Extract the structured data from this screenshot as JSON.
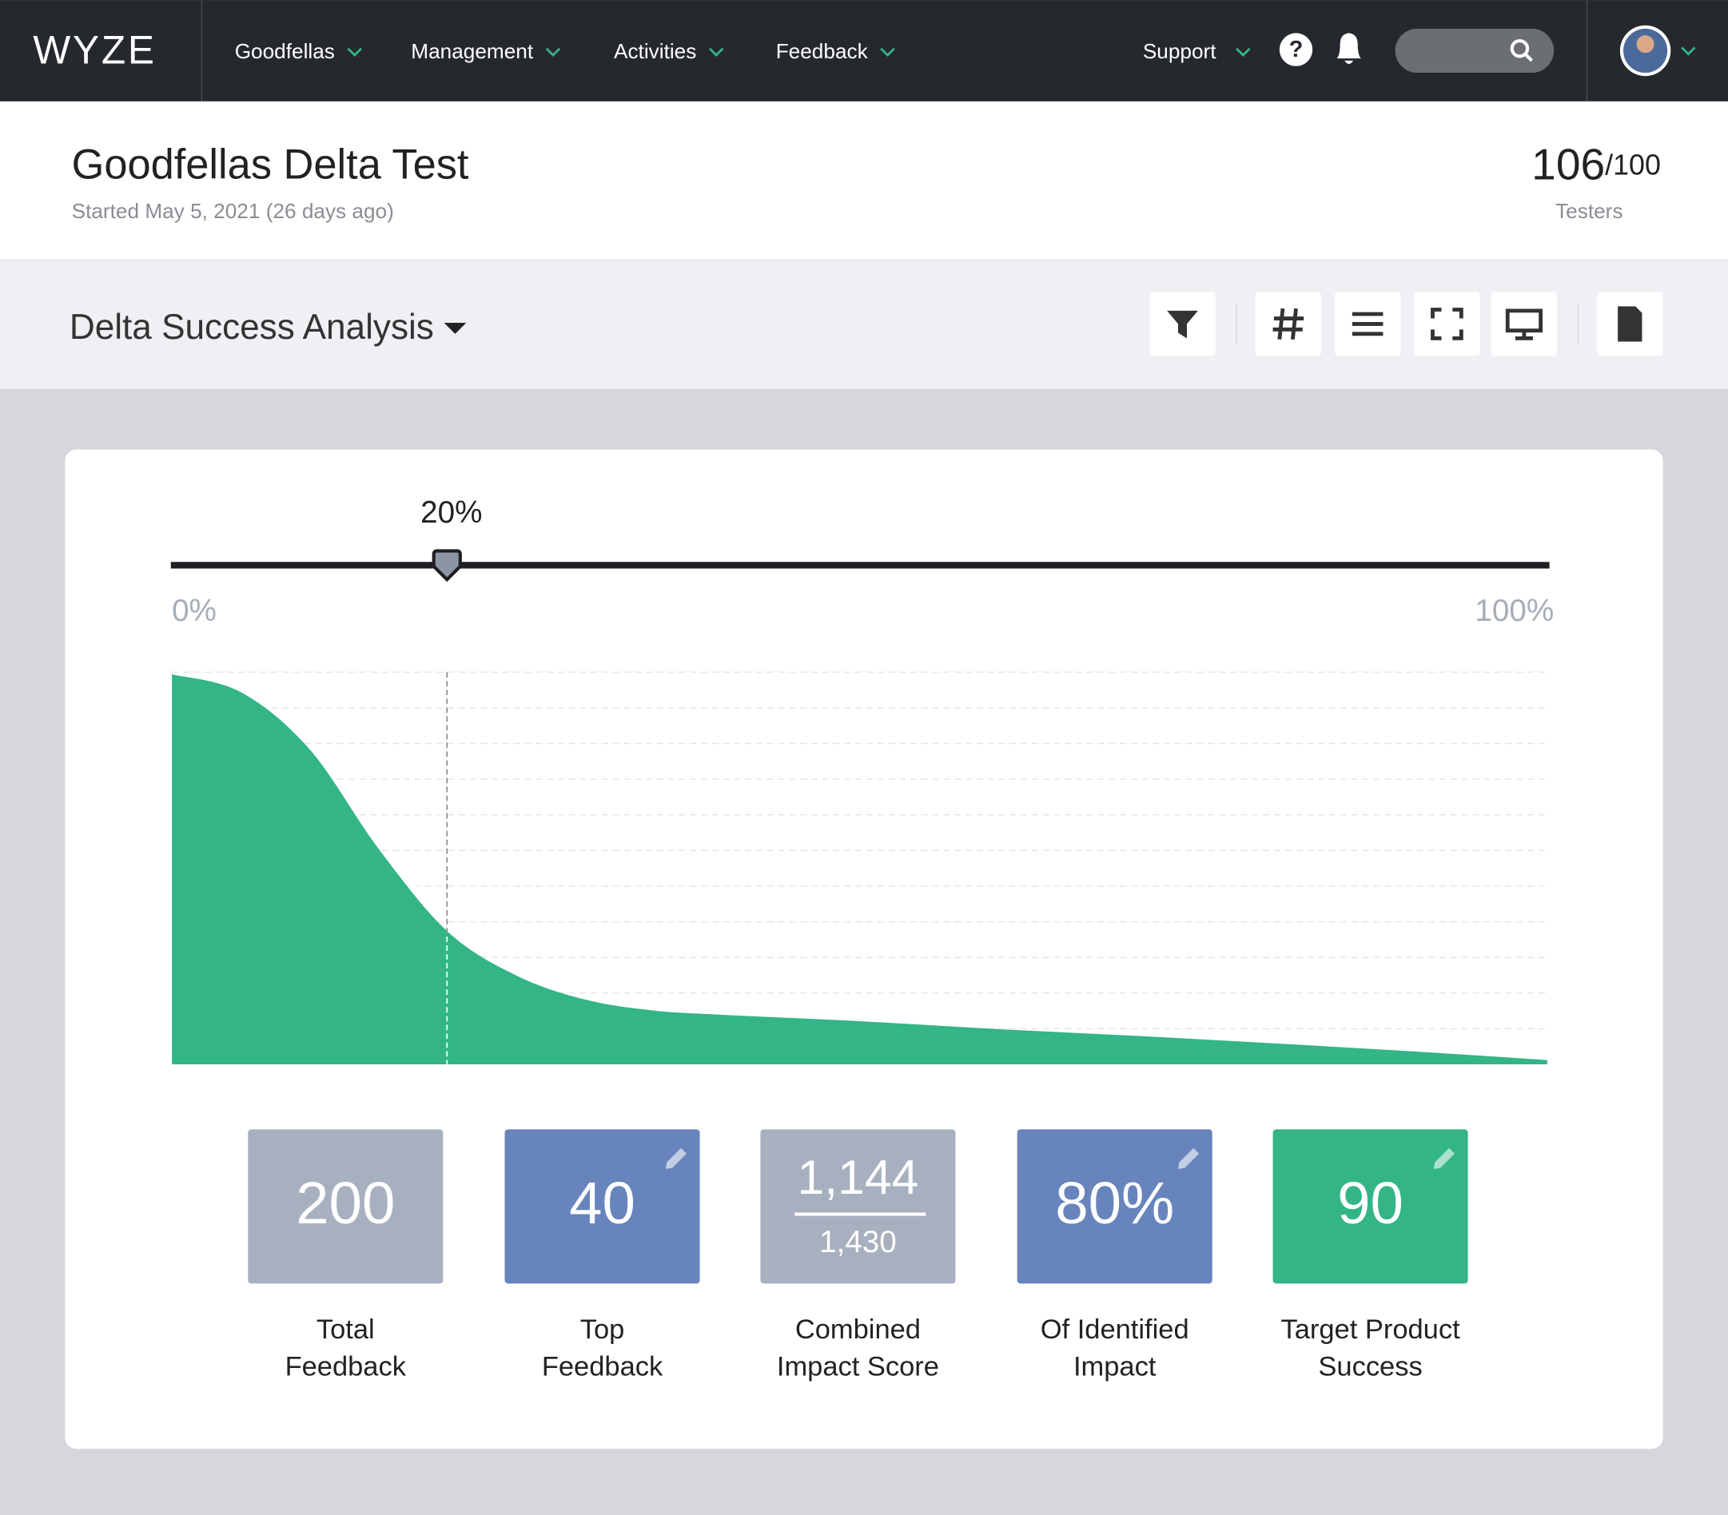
{
  "nav": {
    "logo": "WYZE",
    "items": [
      "Goodfellas",
      "Management",
      "Activities",
      "Feedback"
    ],
    "support": "Support"
  },
  "header": {
    "title": "Goodfellas Delta Test",
    "subtitle": "Started May 5, 2021 (26 days ago)",
    "testers": "106",
    "testers_total": "/100",
    "testers_label": "Testers"
  },
  "toolbar": {
    "title": "Delta Success Analysis"
  },
  "chart_data": {
    "type": "area",
    "x": [
      0,
      5,
      10,
      15,
      20,
      25,
      30,
      35,
      40,
      50,
      60,
      70,
      80,
      90,
      100
    ],
    "values": [
      109.4,
      104.4,
      88.4,
      60.6,
      37.4,
      25,
      18.2,
      15.1,
      13.9,
      12.1,
      9.9,
      8,
      5.9,
      3.7,
      1.2
    ],
    "color": "#33b586",
    "xlim": [
      0,
      100
    ],
    "ylim": [
      0,
      110
    ],
    "xticks": [
      {
        "value": 0,
        "label": "0%"
      },
      {
        "value": 100,
        "label": "100%"
      }
    ],
    "yticks": [
      10,
      20,
      30,
      40,
      50,
      60,
      70,
      80,
      90,
      100,
      110
    ],
    "grid": true,
    "marker": {
      "value": 20,
      "label": "20%"
    }
  },
  "metrics": [
    {
      "value": "200",
      "label": [
        "Total",
        "Feedback"
      ],
      "color": "#a8b0c0"
    },
    {
      "value": "40",
      "label": [
        "Top",
        "Feedback"
      ],
      "color": "#6884bc",
      "editable": true
    },
    {
      "value": "1,144",
      "total": "1,430",
      "label": [
        "Combined",
        "Impact Score"
      ],
      "color": "#a8b0c0"
    },
    {
      "value": "80%",
      "label": [
        "Of Identified",
        "Impact"
      ],
      "color": "#6884bc",
      "editable": true
    },
    {
      "value": "90",
      "label": [
        "Target Product",
        "Success"
      ],
      "color": "#33b586",
      "editable": true
    }
  ]
}
